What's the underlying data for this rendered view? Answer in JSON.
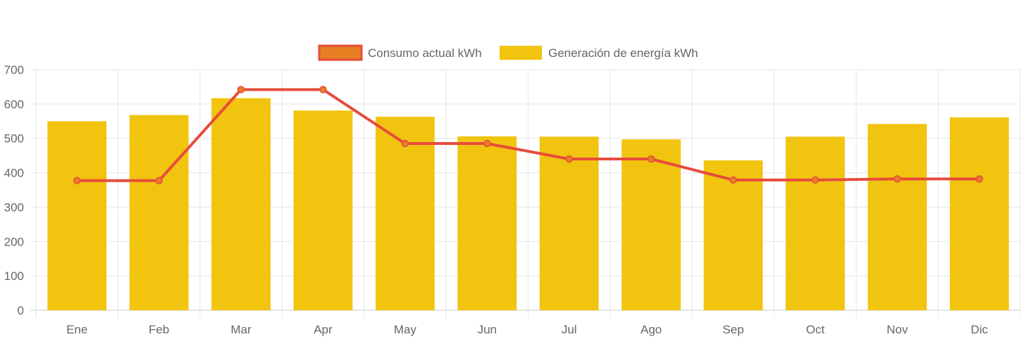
{
  "chart_data": {
    "type": "bar",
    "categories": [
      "Ene",
      "Feb",
      "Mar",
      "Apr",
      "May",
      "Jun",
      "Jul",
      "Ago",
      "Sep",
      "Oct",
      "Nov",
      "Dic"
    ],
    "series": [
      {
        "name": "Consumo actual kWh",
        "type": "line",
        "values": [
          377,
          377,
          642,
          642,
          485,
          485,
          440,
          440,
          379,
          379,
          382,
          382
        ],
        "color": "#e74c3c",
        "fill": "#e67e22"
      },
      {
        "name": "Generación de energía kWh",
        "type": "bar",
        "values": [
          550,
          568,
          617,
          581,
          563,
          506,
          505,
          497,
          436,
          505,
          542,
          561
        ],
        "color": "#f1c40f"
      }
    ],
    "yticks": [
      0,
      100,
      200,
      300,
      400,
      500,
      600,
      700
    ],
    "ylim": [
      0,
      700
    ],
    "grid": true,
    "legend_position": "top"
  }
}
